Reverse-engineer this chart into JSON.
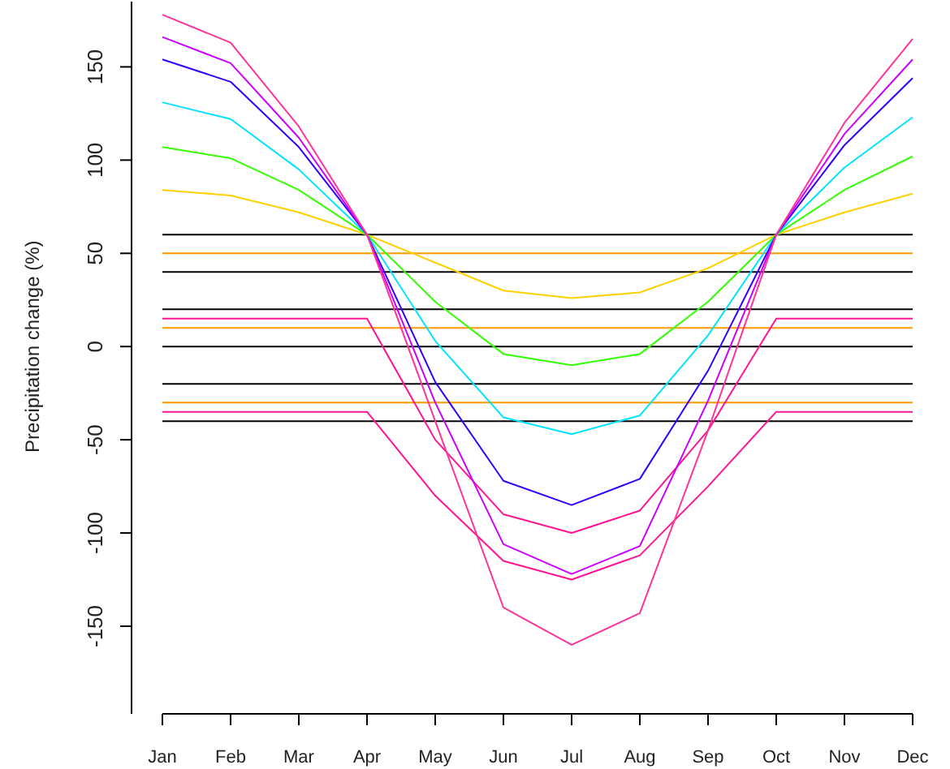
{
  "chart_data": {
    "type": "line",
    "ylabel": "Precipitation change (%)",
    "categories": [
      "Jan",
      "Feb",
      "Mar",
      "Apr",
      "May",
      "Jun",
      "Jul",
      "Aug",
      "Sep",
      "Oct",
      "Nov",
      "Dec"
    ],
    "ylim": [
      -197,
      185
    ],
    "yticks": [
      -150,
      -100,
      -50,
      0,
      50,
      100,
      150
    ],
    "series": [
      {
        "color": "#000000",
        "values": [
          -40,
          -40,
          -40,
          -40,
          -40,
          -40,
          -40,
          -40,
          -40,
          -40,
          -40,
          -40
        ]
      },
      {
        "color": "#ff9900",
        "values": [
          -30,
          -30,
          -30,
          -30,
          -30,
          -30,
          -30,
          -30,
          -30,
          -30,
          -30,
          -30
        ]
      },
      {
        "color": "#000000",
        "values": [
          -20,
          -20,
          -20,
          -20,
          -20,
          -20,
          -20,
          -20,
          -20,
          -20,
          -20,
          -20
        ]
      },
      {
        "color": "#000000",
        "values": [
          0,
          0,
          0,
          0,
          0,
          0,
          0,
          0,
          0,
          0,
          0,
          0
        ]
      },
      {
        "color": "#ff9900",
        "values": [
          10,
          10,
          10,
          10,
          10,
          10,
          10,
          10,
          10,
          10,
          10,
          10
        ]
      },
      {
        "color": "#000000",
        "values": [
          20,
          20,
          20,
          20,
          20,
          20,
          20,
          20,
          20,
          20,
          20,
          20
        ]
      },
      {
        "color": "#000000",
        "values": [
          40,
          40,
          40,
          40,
          40,
          40,
          40,
          40,
          40,
          40,
          40,
          40
        ]
      },
      {
        "color": "#ff9900",
        "values": [
          50,
          50,
          50,
          50,
          50,
          50,
          50,
          50,
          50,
          50,
          50,
          50
        ]
      },
      {
        "color": "#000000",
        "values": [
          60,
          60,
          60,
          60,
          60,
          60,
          60,
          60,
          60,
          60,
          60,
          60
        ]
      },
      {
        "color": "#ff1493",
        "values": [
          -35,
          -35,
          -35,
          -35,
          -80,
          -115,
          -125,
          -112,
          -75,
          -35,
          -35,
          -35
        ]
      },
      {
        "color": "#ff1493",
        "values": [
          15,
          15,
          15,
          15,
          -50,
          -90,
          -100,
          -88,
          -45,
          15,
          15,
          15
        ]
      },
      {
        "color": "#ffd000",
        "values": [
          84,
          81,
          72,
          60,
          45,
          30,
          26,
          29,
          42,
          60,
          72,
          82
        ]
      },
      {
        "color": "#33ff00",
        "values": [
          107,
          101,
          84,
          60,
          24,
          -4,
          -10,
          -4,
          24,
          60,
          84,
          102
        ]
      },
      {
        "color": "#00e5ff",
        "values": [
          131,
          122,
          95,
          60,
          3,
          -38,
          -47,
          -37,
          6,
          60,
          96,
          123
        ]
      },
      {
        "color": "#3300ff",
        "values": [
          154,
          142,
          107,
          60,
          -19,
          -72,
          -85,
          -71,
          -13,
          60,
          108,
          144
        ]
      },
      {
        "color": "#cc00ff",
        "values": [
          166,
          152,
          112,
          60,
          -30,
          -106,
          -122,
          -107,
          -29,
          60,
          114,
          154
        ]
      },
      {
        "color": "#ff3399",
        "values": [
          178,
          163,
          118,
          60,
          -40,
          -140,
          -160,
          -143,
          -45,
          60,
          120,
          165
        ]
      }
    ]
  }
}
